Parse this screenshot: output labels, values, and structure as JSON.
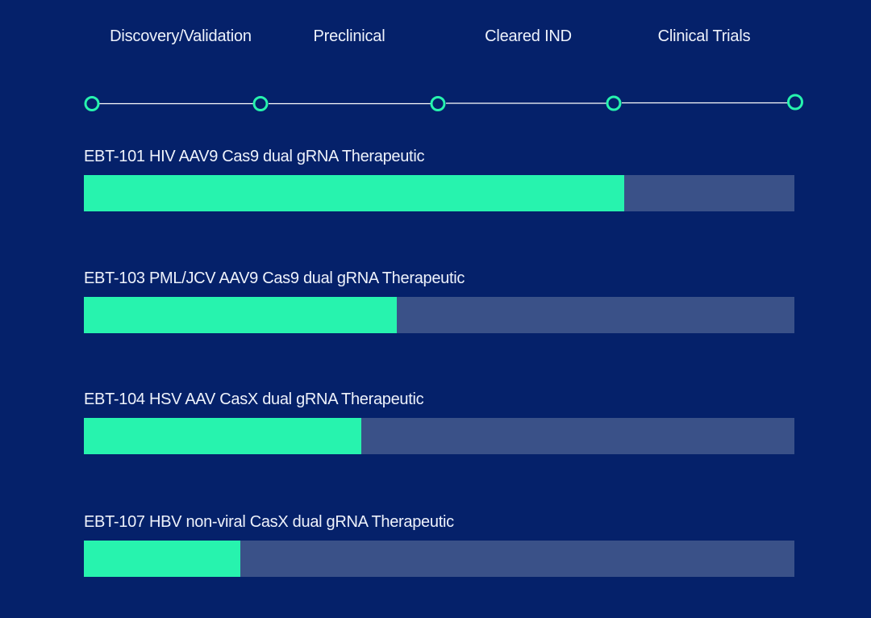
{
  "stages": [
    {
      "label": "Discovery/Validation"
    },
    {
      "label": "Preclinical"
    },
    {
      "label": "Cleared IND"
    },
    {
      "label": "Clinical Trials"
    }
  ],
  "colors": {
    "background": "#05216a",
    "accent": "#27f3ae",
    "track": "#3a5188",
    "line": "#ffffff"
  },
  "programs": [
    {
      "name": "EBT-101 HIV AAV9 Cas9 dual gRNA Therapeutic",
      "progress": 0.76
    },
    {
      "name": "EBT-103 PML/JCV AAV9 Cas9 dual gRNA Therapeutic",
      "progress": 0.44
    },
    {
      "name": "EBT-104 HSV AAV CasX dual gRNA Therapeutic",
      "progress": 0.39
    },
    {
      "name": "EBT-107 HBV non-viral CasX dual gRNA Therapeutic",
      "progress": 0.22
    }
  ]
}
